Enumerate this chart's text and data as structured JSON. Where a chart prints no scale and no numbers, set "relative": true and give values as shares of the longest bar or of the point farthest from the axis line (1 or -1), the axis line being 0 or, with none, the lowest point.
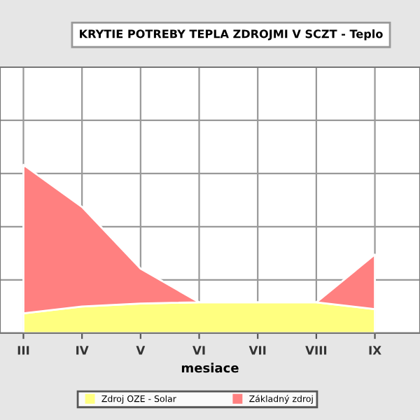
{
  "chart_data": {
    "type": "area",
    "title": "KRYTIE POTREBY TEPLA ZDROJMI V SCZT - Teplo",
    "xlabel": "mesiace",
    "relative": true,
    "stacked": true,
    "grid": true,
    "legend": "bottom",
    "categories": [
      "III",
      "IV",
      "V",
      "VI",
      "VII",
      "VIII",
      "IX"
    ],
    "series": [
      {
        "name": "Zdroj OZE - Solar",
        "color": "#ffff80",
        "values": [
          0.117,
          0.158,
          0.175,
          0.183,
          0.183,
          0.183,
          0.142
        ]
      },
      {
        "name": "Základný zdroj",
        "color": "#ff8080",
        "values": [
          0.883,
          0.592,
          0.208,
          0,
          0,
          0,
          0.325
        ]
      }
    ]
  }
}
